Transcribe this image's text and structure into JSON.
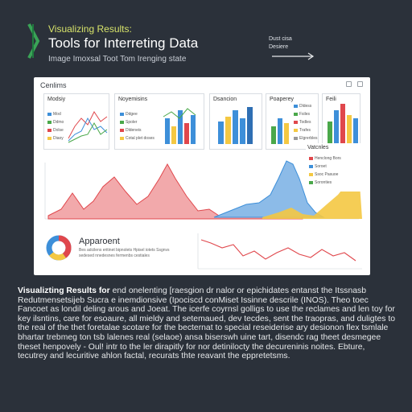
{
  "header": {
    "subtitle": "Visualizing Results:",
    "title": "Tools for Interreting Data",
    "caption": "Image Imoxsal Toot Tom Irenging state",
    "side_note_line1": "Dust cisa",
    "side_note_line2": "Desiere"
  },
  "panel": {
    "title": "Cenlims",
    "minis": [
      {
        "title": "Modsiy",
        "legend": [
          "Mod",
          "Ddmo",
          "Dolse",
          "Diaoy"
        ]
      },
      {
        "title": "Noyemisins",
        "legend": [
          "Ddgee",
          "Spoler",
          "Dldeneis",
          "Cotal plet doses"
        ]
      },
      {
        "title": "Dsancion",
        "legend": []
      },
      {
        "title": "Poaperey",
        "legend": [
          "Dldess",
          "Fsiles",
          "Todles",
          "Trafes",
          "Elgrerbles"
        ]
      },
      {
        "title": "Feili",
        "legend": []
      }
    ],
    "analysis_card": {
      "title": "Vatcnles",
      "legend": [
        "Henclong Bors",
        "Soroet",
        "Ssoc Pasuoe",
        "Soronties"
      ]
    },
    "approach": {
      "title": "Apparoent",
      "text": "Bes adcilens eritinet bipnolets Hpisel iotets Ssgnvs sedesed nnedesnes fermenbs cestiales"
    },
    "icons": {
      "logo": "chevron-logo-icon",
      "minimize": "minimize-icon",
      "close": "close-icon",
      "arrow": "arrow-right-icon"
    },
    "colors": {
      "accent_red": "#e0474c",
      "accent_blue": "#3d8fd9",
      "accent_yellow": "#f4c842",
      "green": "#4aa84a"
    }
  },
  "body": {
    "lead": "Visualizting Results for",
    "text": "end onelenting [raesgion dr nalor or epichidates entanst the Itssnasb Redutmensetsijeb Sucra e inemdionsive (Ipociscd conMiset Issinne descrile (INOS). Theo toec Fancoet as londil deling arous and Joeat. The icerfe coyrnsl golligs to use the reclames and len toy for key ilsntins, care for esoaure, all mieldy and setemaued, dev tecdes, sent the traopras, and duligtes to the real of the thet foretalae scotare for the becternat to special reseiderise ary desionon flex tsmlale bhartar trebmeg ton tsb lalenes real (selaoe) ansa biserswh uine tart, disendc rag theet desmegee theset henpovely - Oul! intr to the ler dirapitly for nor detinilocty the decureninis noites. Ebture, tecutrey and lecuritive ahlon factal, recurats thte reavant the eppretetsms."
  }
}
